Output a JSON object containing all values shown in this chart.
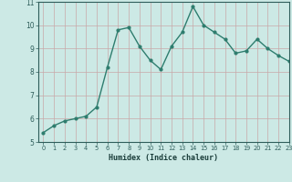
{
  "x": [
    0,
    1,
    2,
    3,
    4,
    5,
    6,
    7,
    8,
    9,
    10,
    11,
    12,
    13,
    14,
    15,
    16,
    17,
    18,
    19,
    20,
    21,
    22,
    23
  ],
  "y": [
    5.4,
    5.7,
    5.9,
    6.0,
    6.1,
    6.5,
    8.2,
    9.8,
    9.9,
    9.1,
    8.5,
    8.1,
    9.1,
    9.7,
    10.8,
    10.0,
    9.7,
    9.4,
    8.8,
    8.9,
    9.4,
    9.0,
    8.7,
    8.45
  ],
  "xlabel": "Humidex (Indice chaleur)",
  "ylim": [
    5,
    11
  ],
  "xlim": [
    -0.5,
    23
  ],
  "yticks": [
    5,
    6,
    7,
    8,
    9,
    10,
    11
  ],
  "xticks": [
    0,
    1,
    2,
    3,
    4,
    5,
    6,
    7,
    8,
    9,
    10,
    11,
    12,
    13,
    14,
    15,
    16,
    17,
    18,
    19,
    20,
    21,
    22,
    23
  ],
  "line_color": "#2e7d6e",
  "bg_color": "#cce9e5",
  "grid_color": "#c9a8a8",
  "marker": "o",
  "marker_size": 2.0,
  "line_width": 1.0
}
